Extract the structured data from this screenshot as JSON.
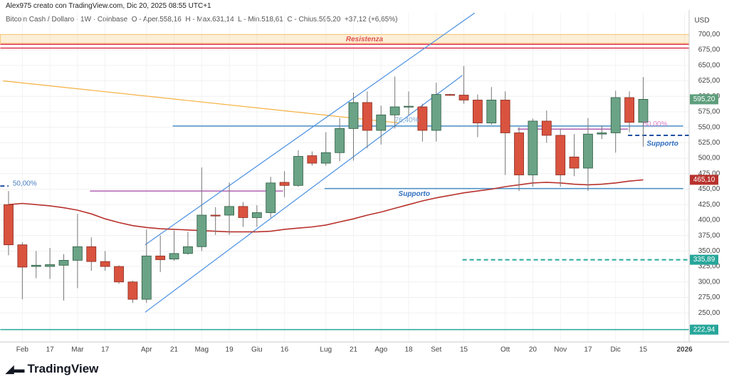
{
  "header": {
    "author_line": "Alex975 creato con TradingView.com, Dic 20, 2025 08:55 UTC+1",
    "symbol_line": "Bitcoin Cash / Dollaro · 1W · Coinbase  O - Aper.558,16  H - Max.631,14  L - Min.518,61  C - Chius.595,20  +37,12 (+6,65%)"
  },
  "chart_data": {
    "type": "candlestick",
    "categories": [
      null,
      "Feb",
      null,
      "17",
      null,
      "Mar",
      null,
      "17",
      null,
      null,
      "Apr",
      null,
      "21",
      null,
      "Mag",
      null,
      "19",
      null,
      "Giu",
      null,
      "16",
      null,
      null,
      "Lug",
      null,
      "21",
      null,
      "Ago",
      null,
      "18",
      null,
      "Set",
      null,
      "15",
      null,
      null,
      "Ott",
      null,
      "20",
      null,
      "Nov",
      null,
      "17",
      null,
      "Dic",
      null,
      "15",
      null,
      null,
      "2026"
    ],
    "open": [
      425,
      360,
      325,
      325,
      327,
      335,
      357,
      333,
      325,
      300,
      272,
      342,
      337,
      346,
      357,
      408,
      408,
      422,
      404,
      412,
      461,
      456,
      504,
      492,
      509,
      548,
      590,
      545,
      570,
      583,
      583,
      545,
      603,
      602,
      594,
      557,
      594,
      541,
      473,
      560,
      537,
      502,
      484,
      539,
      541,
      598,
      558.16,
      null,
      null,
      null
    ],
    "high": [
      447,
      364,
      350,
      355,
      345,
      410,
      372,
      350,
      327,
      302,
      385,
      375,
      383,
      381,
      485,
      421,
      461,
      429,
      424,
      470,
      479,
      513,
      511,
      542,
      565,
      606,
      608,
      585,
      632,
      608,
      588,
      622,
      604,
      649,
      603,
      615,
      608,
      550,
      564,
      577,
      548,
      539,
      565,
      553,
      609,
      608,
      631.14,
      null,
      null,
      null
    ],
    "low": [
      343,
      272,
      306,
      305,
      270,
      290,
      318,
      318,
      297,
      266,
      266,
      316,
      334,
      344,
      350,
      376,
      376,
      389,
      389,
      404,
      437,
      454,
      488,
      488,
      495,
      496,
      516,
      522,
      548,
      569,
      527,
      527,
      601,
      588,
      534,
      554,
      473,
      447,
      454,
      525,
      454,
      471,
      447,
      531,
      509,
      542,
      518.61,
      null,
      null,
      null
    ],
    "close": [
      360,
      324,
      327,
      328,
      335,
      357,
      333,
      325,
      300,
      272,
      342,
      336,
      346,
      357,
      408,
      407,
      422,
      404,
      412,
      460,
      456,
      503,
      492,
      509,
      548,
      590,
      545,
      570,
      583,
      584,
      545,
      603,
      602,
      594,
      557,
      594,
      541,
      473,
      560,
      537,
      473,
      484,
      539,
      541,
      598,
      558,
      595.2,
      null,
      null,
      null
    ],
    "up_color": "#6ba386",
    "down_color": "#d9533f",
    "series": [
      {
        "color": "#b8322d",
        "values": [
          425,
          427,
          425,
          423,
          420,
          416,
          410,
          402,
          396,
          391,
          388,
          386,
          385,
          384,
          383,
          382,
          381,
          381,
          381,
          382,
          385,
          387,
          389,
          392,
          397,
          402,
          408,
          413,
          419,
          425,
          431,
          436,
          440,
          444,
          447,
          450,
          454,
          457,
          460,
          461,
          460,
          458,
          457,
          458,
          460,
          463,
          465.1,
          null,
          null,
          null
        ]
      }
    ],
    "y_unit": "USD",
    "ylim": [
      203,
      735
    ],
    "yticks": [
      {
        "value": 250,
        "label": "250,00"
      },
      {
        "value": 275,
        "label": "275,00"
      },
      {
        "value": 300,
        "label": "300,00"
      },
      {
        "value": 325,
        "label": "325,00"
      },
      {
        "value": 350,
        "label": "350,00"
      },
      {
        "value": 375,
        "label": "375,00"
      },
      {
        "value": 400,
        "label": "400,00"
      },
      {
        "value": 425,
        "label": "425,00"
      },
      {
        "value": 450,
        "label": "450,00"
      },
      {
        "value": 475,
        "label": "475,00"
      },
      {
        "value": 500,
        "label": "500,00"
      },
      {
        "value": 525,
        "label": "525,00"
      },
      {
        "value": 550,
        "label": "550,00"
      },
      {
        "value": 575,
        "label": "575,00"
      },
      {
        "value": 600,
        "label": "600,00"
      },
      {
        "value": 625,
        "label": "625,00"
      },
      {
        "value": 650,
        "label": "650,00"
      },
      {
        "value": 675,
        "label": "675,00"
      },
      {
        "value": 700,
        "label": "700,00"
      }
    ],
    "zones": [
      {
        "range": [
          686,
          700
        ],
        "from": -0.6,
        "to": 49.5,
        "color": "#f5a623"
      }
    ],
    "levels": [
      {
        "value": 684,
        "from": -0.6,
        "to": 49.5,
        "color": "#e0304a",
        "dashed": false
      },
      {
        "value": 678,
        "from": -0.6,
        "to": 49.5,
        "color": "#e0304a",
        "dashed": false
      },
      {
        "value": 552,
        "from": 11.9,
        "to": 48.9,
        "color": "#4a90c8",
        "dashed": false
      },
      {
        "value": 451,
        "from": 22.9,
        "to": 48.9,
        "color": "#4a90c8",
        "dashed": false
      },
      {
        "value": 447,
        "from": 5.9,
        "to": 19.9,
        "color": "#b060b0",
        "dashed": false
      },
      {
        "value": 547,
        "from": 36.9,
        "to": 44.9,
        "color": "#b060b0",
        "dashed": false
      },
      {
        "value": 537,
        "from": 44.9,
        "to": 49.5,
        "color": "#1f4fa0",
        "dashed": true
      },
      {
        "value": 335.89,
        "from": 32.9,
        "to": 49.5,
        "color": "#26a69a",
        "dashed": true
      },
      {
        "value": 455,
        "from": -0.6,
        "to": 0,
        "color": "#1f4fa0",
        "dashed": true
      },
      {
        "value": 222.94,
        "from": -0.6,
        "to": 49.5,
        "color": "#26a69a",
        "dashed": false
      }
    ],
    "trend_lines": [
      {
        "x": [
          -0.4,
          28.3
        ],
        "y": [
          625,
          557
        ],
        "color": "#f5b041"
      },
      {
        "x": [
          9.9,
          32.9
        ],
        "y": [
          251,
          634
        ],
        "color": "#4a90e2"
      },
      {
        "x": [
          9.9,
          33.8
        ],
        "y": [
          360,
          735
        ],
        "color": "#4a90e2"
      }
    ],
    "annotations": [
      {
        "text": "Resistenza",
        "x": 25.8,
        "y": 692,
        "color": "#e0504a",
        "size": 14
      },
      {
        "text": "Supporto",
        "x": 29.4,
        "y": 442,
        "color": "#2f6fc0",
        "size": 13
      },
      {
        "text": "Supporto",
        "x": 47.4,
        "y": 523,
        "color": "#2f6fc0",
        "size": 13
      },
      {
        "text": "50,00%",
        "x": 0.3,
        "y": 459,
        "color": "#4a7fc1",
        "size": 9
      },
      {
        "text": "50,00%",
        "x": 46.0,
        "y": 555,
        "color": "#d880c8",
        "size": 9
      },
      {
        "text": "76,40%",
        "x": 28.0,
        "y": 561,
        "color": "#7aa8d8",
        "size": 9
      }
    ],
    "price_labels": [
      {
        "value": 595.2,
        "label": "595,20",
        "color": "#5d9e7c"
      },
      {
        "value": 465.1,
        "label": "465,10",
        "color": "#b8322d"
      },
      {
        "value": 335.89,
        "label": "335,89",
        "color": "#26a69a"
      },
      {
        "value": 222.94,
        "label": "222,94",
        "color": "#26a69a"
      }
    ]
  },
  "footer": {
    "brand": "TradingView"
  }
}
